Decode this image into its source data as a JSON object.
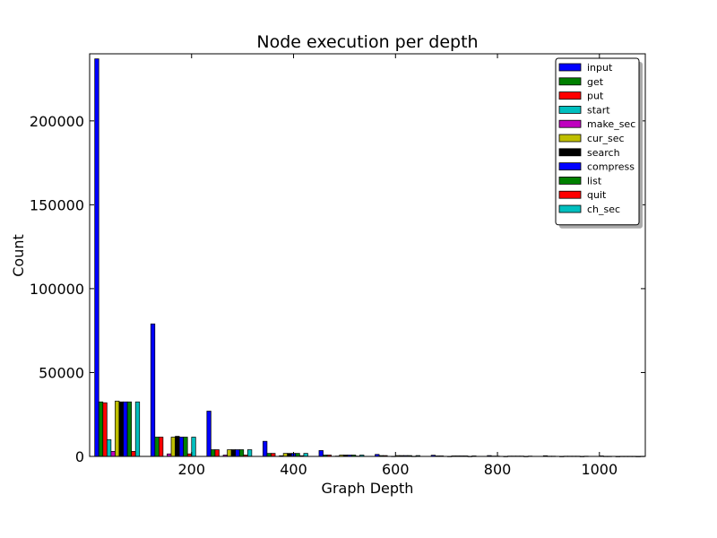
{
  "chart_data": {
    "type": "bar",
    "title": "Node execution per depth",
    "xlabel": "Graph Depth",
    "ylabel": "Count",
    "xlim": [
      0,
      1090
    ],
    "ylim": [
      0,
      240000
    ],
    "xticks": [
      200,
      400,
      600,
      800,
      1000
    ],
    "yticks": [
      0,
      50000,
      100000,
      150000,
      200000
    ],
    "grid": false,
    "legend_position": "top-right",
    "bin_starts": [
      10,
      120,
      230,
      340,
      450,
      560,
      670,
      780,
      890,
      1000
    ],
    "series": [
      {
        "name": "input",
        "color": "#0000ff",
        "values": [
          237000,
          79000,
          27000,
          9000,
          3500,
          1200,
          700,
          500,
          400,
          300
        ]
      },
      {
        "name": "get",
        "color": "#008000",
        "values": [
          32500,
          11500,
          4000,
          1800,
          800,
          500,
          300,
          200,
          150,
          100
        ]
      },
      {
        "name": "put",
        "color": "#ff0000",
        "values": [
          32000,
          11500,
          4000,
          1800,
          800,
          500,
          300,
          200,
          150,
          100
        ]
      },
      {
        "name": "start",
        "color": "#00bfbf",
        "values": [
          10000,
          0,
          0,
          0,
          0,
          0,
          0,
          0,
          0,
          0
        ]
      },
      {
        "name": "make_sec",
        "color": "#bf00bf",
        "values": [
          3000,
          1500,
          800,
          400,
          200,
          100,
          50,
          30,
          20,
          10
        ]
      },
      {
        "name": "cur_sec",
        "color": "#bfbf00",
        "values": [
          33000,
          11500,
          4000,
          1800,
          800,
          500,
          300,
          200,
          150,
          100
        ]
      },
      {
        "name": "search",
        "color": "#000000",
        "values": [
          32500,
          12000,
          4000,
          1800,
          800,
          500,
          300,
          200,
          150,
          100
        ]
      },
      {
        "name": "compress",
        "color": "#0000ff",
        "values": [
          32500,
          11500,
          4000,
          1800,
          800,
          500,
          300,
          200,
          150,
          100
        ]
      },
      {
        "name": "list",
        "color": "#008000",
        "values": [
          32500,
          11500,
          4000,
          1800,
          800,
          500,
          300,
          200,
          150,
          100
        ]
      },
      {
        "name": "quit",
        "color": "#ff0000",
        "values": [
          3000,
          1500,
          800,
          400,
          200,
          100,
          50,
          30,
          20,
          10
        ]
      },
      {
        "name": "ch_sec",
        "color": "#00bfbf",
        "values": [
          32500,
          11500,
          4000,
          1800,
          800,
          500,
          300,
          200,
          150,
          100
        ]
      }
    ]
  }
}
